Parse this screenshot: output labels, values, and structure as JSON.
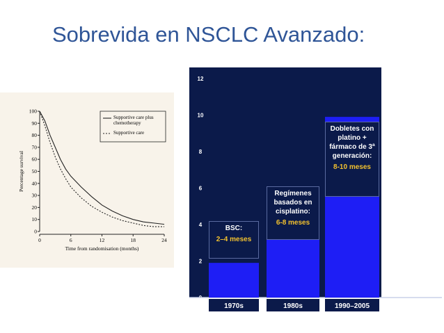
{
  "slide_title": "Sobrevida en NSCLC Avanzado:",
  "chart_data": [
    {
      "type": "line",
      "ylabel": "Percentage survival",
      "xlabel": "Time from randomisation (months)",
      "x": [
        0,
        1,
        2,
        3,
        4,
        5,
        6,
        8,
        10,
        12,
        14,
        16,
        18,
        20,
        22,
        24
      ],
      "series": [
        {
          "name": "Supportive care plus chemotherapy",
          "color": "#222222",
          "style": "solid",
          "values": [
            100,
            92,
            80,
            70,
            60,
            52,
            46,
            37,
            29,
            22,
            17,
            13,
            10,
            8,
            7,
            6
          ]
        },
        {
          "name": "Supportive care",
          "color": "#222222",
          "style": "dashed",
          "values": [
            100,
            88,
            74,
            62,
            52,
            44,
            37,
            28,
            21,
            16,
            12,
            9,
            7,
            5,
            4,
            4
          ]
        }
      ],
      "xlim": [
        0,
        24
      ],
      "xticks": [
        0,
        6,
        12,
        18,
        24
      ],
      "ylim": [
        0,
        100
      ],
      "yticks": [
        0,
        10,
        20,
        30,
        40,
        50,
        60,
        70,
        80,
        90,
        100
      ]
    },
    {
      "type": "bar",
      "categories": [
        "1970s",
        "1980s",
        "1990–2005"
      ],
      "values": [
        1.9,
        3.2,
        9.9
      ],
      "color": "#1e1ef5",
      "ylim": [
        0,
        12
      ],
      "yticks": [
        0,
        2,
        4,
        6,
        8,
        10,
        12
      ],
      "annotations": [
        {
          "text": "BSC:",
          "highlight": "2–4 meses"
        },
        {
          "text": "Regímenes basados en cisplatino:",
          "highlight": "6-8 meses"
        },
        {
          "text": "Dobletes con platino + fármaco de 3ª generación:",
          "highlight": "8-10 meses"
        }
      ]
    }
  ]
}
